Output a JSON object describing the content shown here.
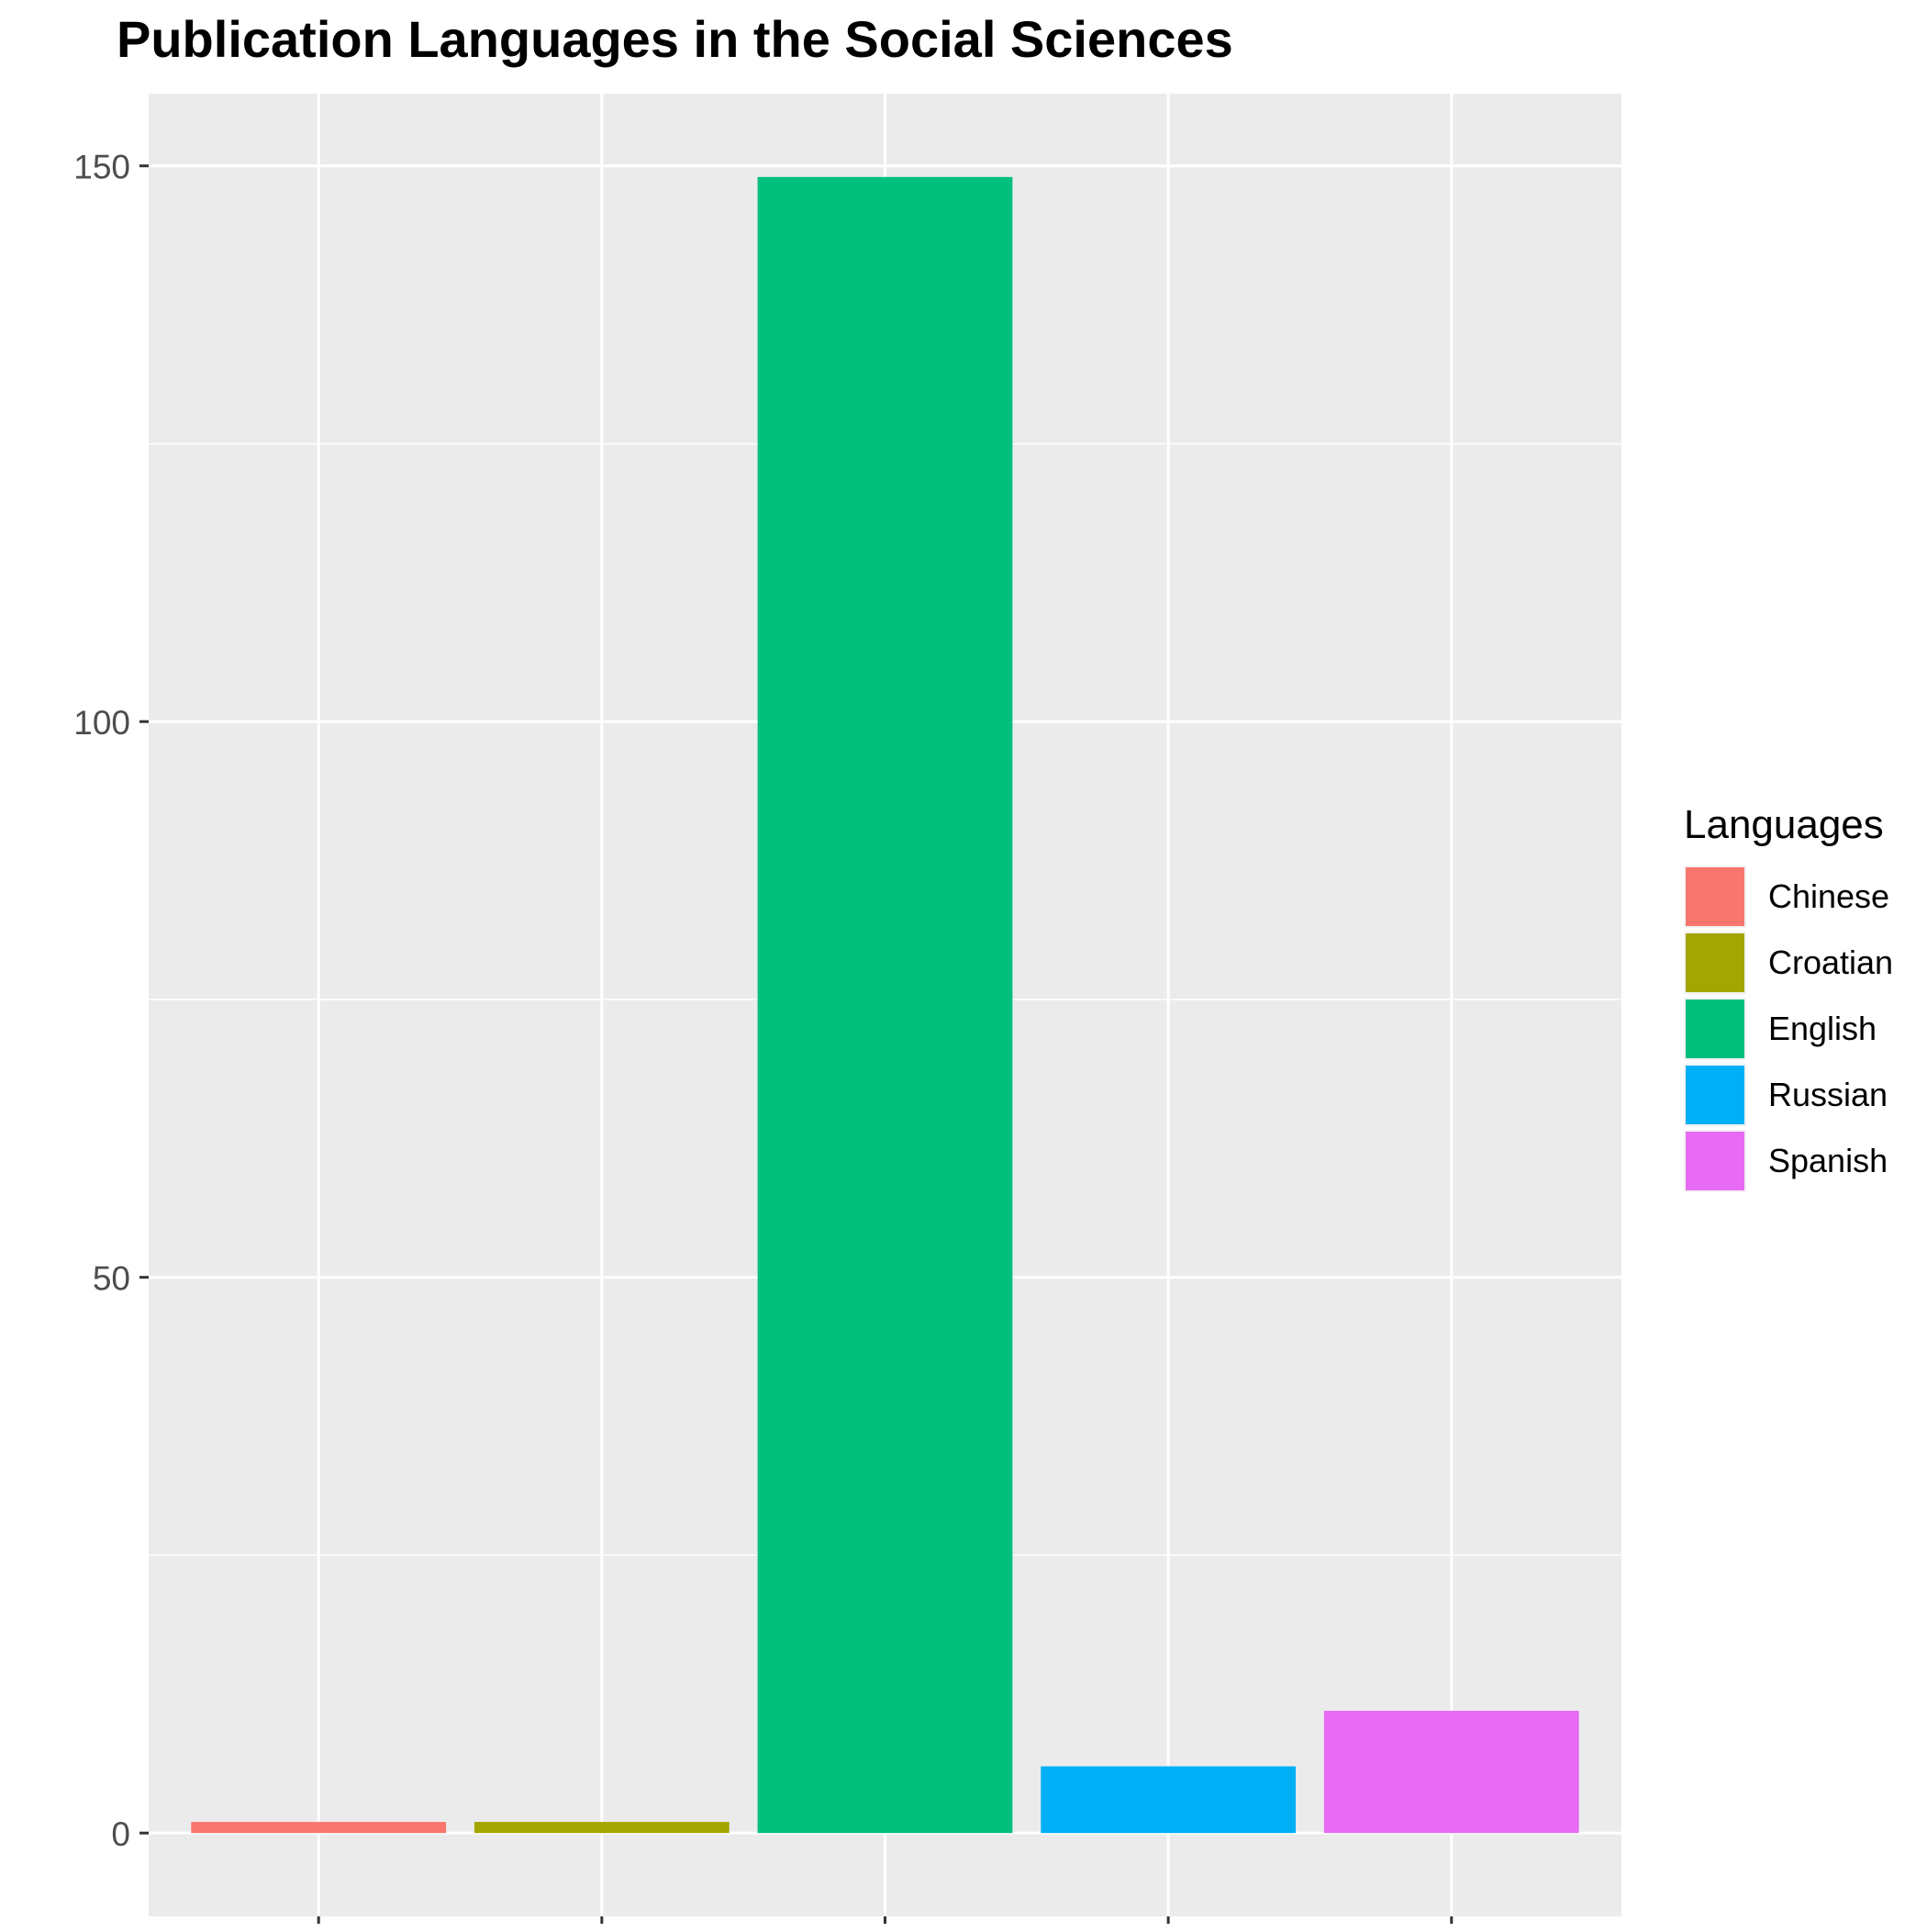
{
  "chart_data": {
    "type": "bar",
    "title": "Publication Languages in the Social Sciences",
    "xlabel": "",
    "ylabel": "",
    "categories": [
      "Chinese",
      "Croatian",
      "English",
      "Russian",
      "Spanish"
    ],
    "values": [
      1,
      1,
      149,
      6,
      11
    ],
    "colors": [
      "#F8766D",
      "#A3A500",
      "#00BF7D",
      "#00B0F6",
      "#E76BF3"
    ],
    "ylim": [
      -7.5,
      156.5
    ],
    "y_ticks": [
      0,
      50,
      100,
      150
    ],
    "y_tick_labels": [
      "0",
      "50",
      "100",
      "150"
    ],
    "x_tick_labels_shown": false,
    "grid": true,
    "panel_background": "#EBEBEB",
    "legend": {
      "title": "Languages",
      "placement": "right",
      "entries": [
        "Chinese",
        "Croatian",
        "English",
        "Russian",
        "Spanish"
      ]
    }
  }
}
